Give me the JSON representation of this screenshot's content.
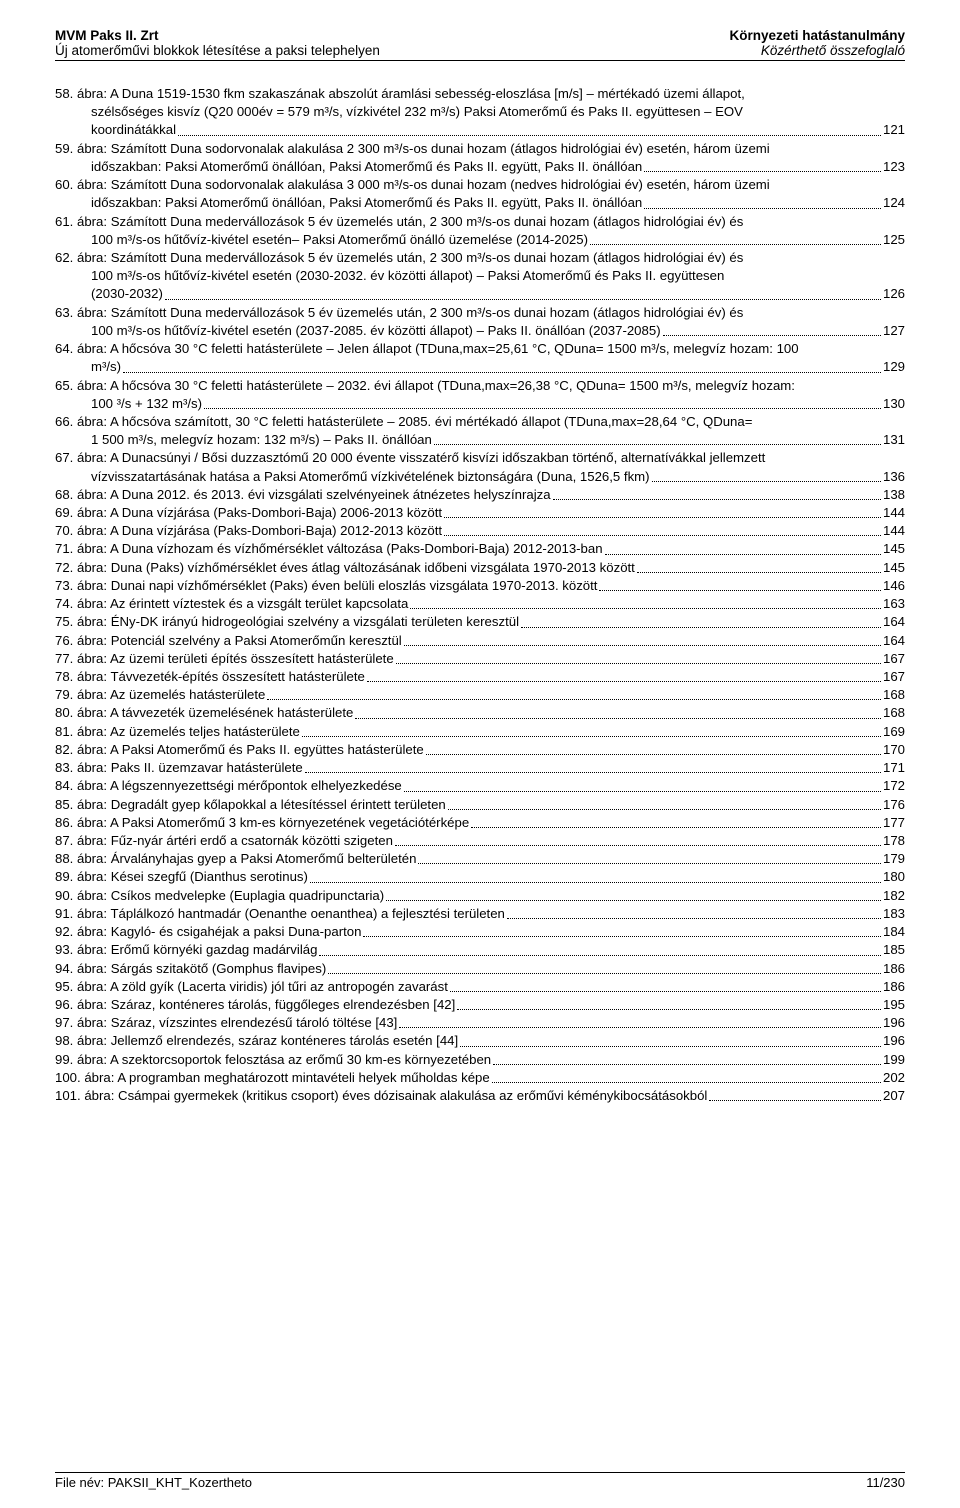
{
  "header": {
    "left_top": "MVM Paks II. Zrt",
    "left_bottom": "Új atomerőművi blokkok létesítése a paksi telephelyen",
    "right_top": "Környezeti hatástanulmány",
    "right_bottom": "Közérthető összefoglaló"
  },
  "footer": {
    "left": "File név: PAKSII_KHT_Kozertheto",
    "right": "11/230"
  },
  "entries": [
    {
      "type": "multi",
      "lines": [
        "58. ábra: A Duna 1519-1530 fkm szakaszának abszolút áramlási sebesség-eloszlása [m/s] – mértékadó üzemi állapot,",
        "szélsőséges kisvíz (Q20 000év = 579 m³/s, vízkivétel 232 m³/s) Paksi Atomerőmű és Paks II. együttesen – EOV"
      ],
      "last": "koordinátákkal",
      "page": "121",
      "indent": true
    },
    {
      "type": "multi",
      "lines": [
        "59. ábra: Számított Duna sodorvonalak alakulása 2 300 m³/s-os dunai hozam (átlagos hidrológiai év) esetén, három üzemi"
      ],
      "last": "időszakban: Paksi Atomerőmű önállóan, Paksi Atomerőmű és Paks II. együtt, Paks II. önállóan",
      "page": "123",
      "indent": true
    },
    {
      "type": "multi",
      "lines": [
        "60. ábra: Számított Duna sodorvonalak alakulása 3 000 m³/s-os dunai hozam (nedves hidrológiai év) esetén, három üzemi"
      ],
      "last": "időszakban: Paksi Atomerőmű önállóan, Paksi Atomerőmű és Paks II. együtt, Paks II. önállóan",
      "page": "124",
      "indent": true
    },
    {
      "type": "multi",
      "lines": [
        "61. ábra: Számított Duna medervállozások 5 év üzemelés után, 2 300 m³/s-os dunai hozam (átlagos hidrológiai év) és"
      ],
      "last": "100 m³/s-os hűtővíz-kivétel esetén– Paksi Atomerőmű önálló üzemelése (2014-2025)",
      "page": "125",
      "indent": true
    },
    {
      "type": "multi",
      "lines": [
        "62. ábra: Számított Duna medervállozások 5 év üzemelés után, 2 300 m³/s-os dunai hozam (átlagos hidrológiai év) és",
        "100 m³/s-os hűtővíz-kivétel esetén (2030-2032. év közötti állapot) – Paksi Atomerőmű és Paks II. együttesen"
      ],
      "last": "(2030-2032)",
      "page": "126",
      "indent": true
    },
    {
      "type": "multi",
      "lines": [
        "63. ábra: Számított Duna medervállozások 5 év üzemelés után, 2 300 m³/s-os dunai hozam (átlagos hidrológiai év) és"
      ],
      "last": "100 m³/s-os hűtővíz-kivétel esetén (2037-2085. év közötti állapot) – Paks II. önállóan (2037-2085)",
      "page": "127",
      "indent": true
    },
    {
      "type": "multi",
      "lines": [
        "64. ábra: A hőcsóva 30 °C feletti hatásterülete – Jelen állapot (TDuna,max=25,61 °C, QDuna= 1500 m³/s, melegvíz hozam: 100"
      ],
      "last": "m³/s)",
      "page": "129",
      "indent": true
    },
    {
      "type": "multi",
      "lines": [
        "65. ábra: A hőcsóva 30 °C feletti hatásterülete – 2032. évi állapot (TDuna,max=26,38 °C, QDuna= 1500 m³/s, melegvíz hozam:"
      ],
      "last": "100 ³/s + 132 m³/s)",
      "page": "130",
      "indent": true
    },
    {
      "type": "multi",
      "lines": [
        "66. ábra: A hőcsóva számított, 30 °C feletti hatásterülete – 2085. évi mértékadó állapot (TDuna,max=28,64 °C, QDuna="
      ],
      "last": "1 500 m³/s, melegvíz hozam: 132 m³/s) – Paks II. önállóan",
      "page": "131",
      "indent": true
    },
    {
      "type": "multi",
      "lines": [
        "67. ábra: A Dunacsúnyi / Bősi duzzasztómű 20 000 évente visszatérő  kisvízi időszakban történő, alternatívákkal jellemzett"
      ],
      "last": "vízvisszatartásának hatása a Paksi Atomerőmű vízkivételének biztonságára (Duna, 1526,5 fkm)",
      "page": "136",
      "indent": true
    },
    {
      "type": "single",
      "text": "68. ábra: A Duna 2012. és 2013. évi vizsgálati szelvényeinek átnézetes helyszínrajza",
      "page": "138"
    },
    {
      "type": "single",
      "text": "69. ábra: A Duna vízjárása (Paks-Dombori-Baja) 2006-2013 között",
      "page": "144"
    },
    {
      "type": "single",
      "text": "70. ábra: A Duna vízjárása (Paks-Dombori-Baja) 2012-2013 között",
      "page": "144"
    },
    {
      "type": "single",
      "text": "71. ábra: A Duna vízhozam és vízhőmérséklet változása (Paks-Dombori-Baja) 2012-2013-ban",
      "page": "145"
    },
    {
      "type": "single",
      "text": "72. ábra: Duna (Paks) vízhőmérséklet éves átlag változásának időbeni vizsgálata 1970-2013 között",
      "page": "145"
    },
    {
      "type": "single",
      "text": "73. ábra: Dunai napi vízhőmérséklet (Paks) éven belüli eloszlás vizsgálata 1970-2013. között",
      "page": "146"
    },
    {
      "type": "single",
      "text": "74. ábra: Az érintett víztestek és a vizsgált terület kapcsolata",
      "page": "163"
    },
    {
      "type": "single",
      "text": "75. ábra: ÉNy-DK irányú hidrogeológiai szelvény a vizsgálati területen keresztül",
      "page": "164"
    },
    {
      "type": "single",
      "text": "76. ábra: Potenciál szelvény a Paksi Atomerőműn keresztül",
      "page": "164"
    },
    {
      "type": "single",
      "text": "77. ábra: Az üzemi területi építés összesített hatásterülete",
      "page": "167"
    },
    {
      "type": "single",
      "text": "78. ábra: Távvezeték-építés összesített hatásterülete",
      "page": "167"
    },
    {
      "type": "single",
      "text": "79. ábra: Az üzemelés hatásterülete",
      "page": "168"
    },
    {
      "type": "single",
      "text": "80. ábra: A távvezeték üzemelésének hatásterülete",
      "page": "168"
    },
    {
      "type": "single",
      "text": "81. ábra: Az üzemelés teljes hatásterülete",
      "page": "169"
    },
    {
      "type": "single",
      "text": "82. ábra: A Paksi Atomerőmű és Paks II. együttes hatásterülete",
      "page": "170"
    },
    {
      "type": "single",
      "text": "83. ábra: Paks II. üzemzavar hatásterülete",
      "page": "171"
    },
    {
      "type": "single",
      "text": "84. ábra: A légszennyezettségi mérőpontok elhelyezkedése",
      "page": "172"
    },
    {
      "type": "single",
      "text": "85. ábra: Degradált gyep kőlapokkal a létesítéssel érintett területen",
      "page": "176"
    },
    {
      "type": "single",
      "text": "86. ábra: A Paksi Atomerőmű 3 km-es környezetének vegetációtérképe",
      "page": "177"
    },
    {
      "type": "single",
      "text": "87. ábra: Fűz-nyár ártéri erdő a csatornák közötti szigeten",
      "page": "178"
    },
    {
      "type": "single",
      "text": "88. ábra: Árvalányhajas gyep a Paksi Atomerőmű belterületén",
      "page": "179"
    },
    {
      "type": "single",
      "text": "89. ábra: Kései szegfű (Dianthus serotinus)",
      "page": "180"
    },
    {
      "type": "single",
      "text": "90. ábra: Csíkos medvelepke (Euplagia quadripunctaria)",
      "page": "182"
    },
    {
      "type": "single",
      "text": "91. ábra: Táplálkozó hantmadár (Oenanthe oenanthea) a fejlesztési területen",
      "page": "183"
    },
    {
      "type": "single",
      "text": "92. ábra: Kagyló- és csigahéjak a paksi Duna-parton",
      "page": "184"
    },
    {
      "type": "single",
      "text": "93. ábra: Erőmű környéki gazdag madárvilág",
      "page": "185"
    },
    {
      "type": "single",
      "text": "94. ábra: Sárgás szitakötő (Gomphus flavipes)",
      "page": "186"
    },
    {
      "type": "single",
      "text": "95. ábra: A zöld gyík (Lacerta viridis) jól tűri az antropogén zavarást",
      "page": "186"
    },
    {
      "type": "single",
      "text": "96. ábra: Száraz, konténeres tárolás, függőleges elrendezésben [42]",
      "page": "195"
    },
    {
      "type": "single",
      "text": "97. ábra: Száraz, vízszintes elrendezésű tároló töltése [43]",
      "page": "196"
    },
    {
      "type": "single",
      "text": "98. ábra: Jellemző elrendezés, száraz konténeres tárolás esetén [44]",
      "page": "196"
    },
    {
      "type": "single",
      "text": "99. ábra: A szektorcsoportok felosztása az erőmű 30 km-es környezetében",
      "page": "199"
    },
    {
      "type": "single",
      "text": "100. ábra: A programban meghatározott mintavételi helyek műholdas képe",
      "page": "202"
    },
    {
      "type": "single",
      "text": "101. ábra: Csámpai gyermekek (kritikus csoport) éves dózisainak alakulása az erőművi kéménykibocsátásokból",
      "page": "207"
    }
  ]
}
